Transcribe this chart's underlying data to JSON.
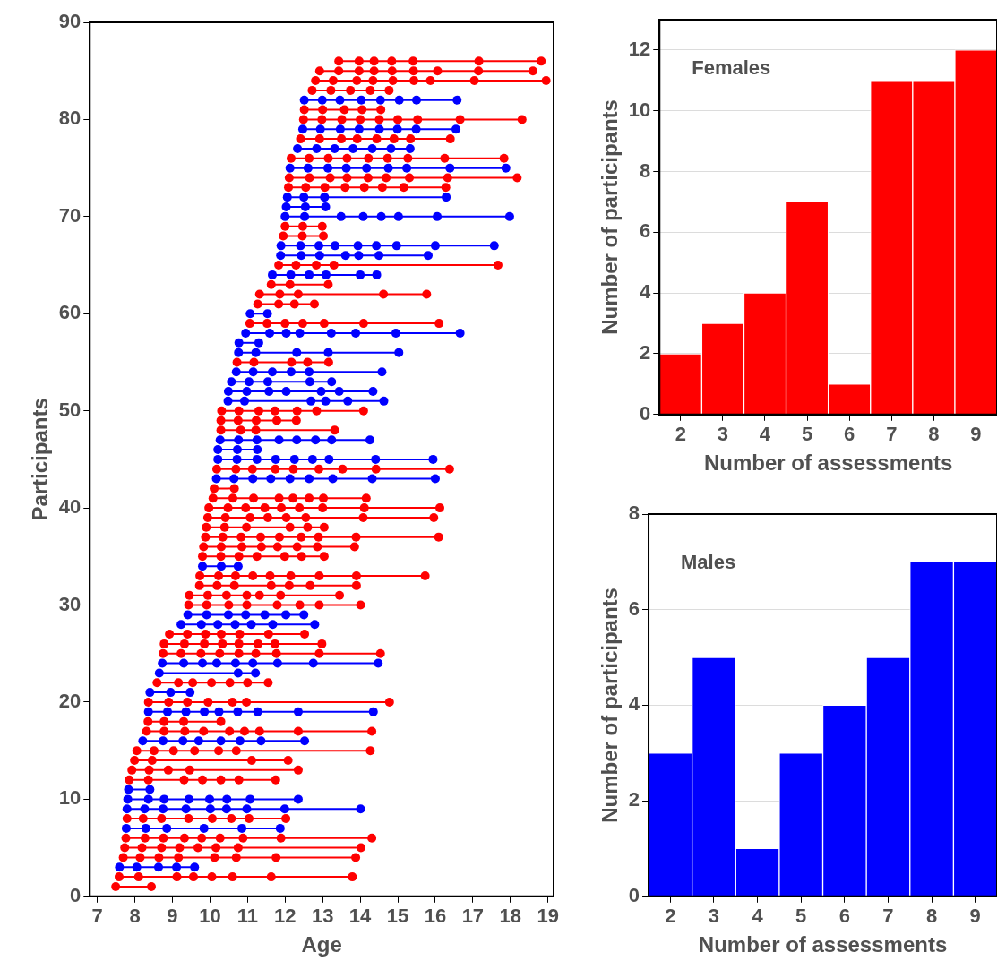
{
  "chart_data": [
    {
      "type": "line",
      "xlabel": "Age",
      "ylabel": "Participants",
      "xlim": [
        6.8,
        19.15
      ],
      "xticks": [
        7,
        8,
        9,
        10,
        11,
        12,
        13,
        14,
        15,
        16,
        17,
        18,
        19
      ],
      "ylim": [
        0,
        90
      ],
      "yticks": [
        0,
        10,
        20,
        30,
        40,
        50,
        60,
        70,
        80,
        90
      ],
      "marker": "circle",
      "legend": false,
      "series": [
        {
          "color": "#ff0000",
          "x": [
            7.49,
            8.44
          ],
          "values": [
            1,
            1
          ]
        },
        {
          "color": "#ff0000",
          "x": [
            7.58,
            8.1,
            9.12,
            9.56,
            10.05,
            10.6,
            11.63,
            13.79
          ],
          "values": [
            2,
            2,
            2,
            2,
            2,
            2,
            2,
            2
          ]
        },
        {
          "color": "#0000ff",
          "x": [
            7.59,
            8.05,
            8.63,
            9.11,
            9.59
          ],
          "values": [
            3,
            3,
            3,
            3,
            3
          ]
        },
        {
          "color": "#ff0000",
          "x": [
            7.69,
            8.14,
            8.64,
            9.16,
            10.12,
            10.7,
            11.76,
            13.88
          ],
          "values": [
            4,
            4,
            4,
            4,
            4,
            4,
            4,
            4
          ]
        },
        {
          "color": "#ff0000",
          "x": [
            7.73,
            8.19,
            8.71,
            9.19,
            9.68,
            10.16,
            10.75,
            14.02
          ],
          "values": [
            5,
            5,
            5,
            5,
            5,
            5,
            5,
            5
          ]
        },
        {
          "color": "#ff0000",
          "x": [
            7.76,
            8.27,
            8.76,
            9.32,
            9.78,
            10.27,
            10.88,
            11.89,
            14.31
          ],
          "values": [
            6,
            6,
            6,
            6,
            6,
            6,
            6,
            6,
            6
          ]
        },
        {
          "color": "#0000ff",
          "x": [
            7.77,
            8.29,
            8.85,
            9.84,
            10.85,
            11.87
          ],
          "values": [
            7,
            7,
            7,
            7,
            7,
            7
          ]
        },
        {
          "color": "#ff0000",
          "x": [
            7.79,
            8.22,
            8.71,
            9.43,
            10.06,
            10.57,
            11.04,
            12.02
          ],
          "values": [
            8,
            8,
            8,
            8,
            8,
            8,
            8,
            8
          ]
        },
        {
          "color": "#0000ff",
          "x": [
            7.79,
            8.26,
            8.75,
            9.36,
            10.01,
            10.44,
            10.98,
            11.99,
            14.01
          ],
          "values": [
            9,
            9,
            9,
            9,
            9,
            9,
            9,
            9,
            9
          ]
        },
        {
          "color": "#0000ff",
          "x": [
            7.81,
            8.36,
            8.78,
            9.44,
            9.99,
            10.45,
            11.07,
            12.35
          ],
          "values": [
            10,
            10,
            10,
            10,
            10,
            10,
            10,
            10
          ]
        },
        {
          "color": "#0000ff",
          "x": [
            7.83,
            8.4
          ],
          "values": [
            11,
            11
          ]
        },
        {
          "color": "#ff0000",
          "x": [
            7.85,
            8.36,
            9.31,
            9.8,
            10.29,
            10.77,
            11.75
          ],
          "values": [
            12,
            12,
            12,
            12,
            12,
            12,
            12
          ]
        },
        {
          "color": "#ff0000",
          "x": [
            7.92,
            8.38,
            8.89,
            9.46,
            12.35
          ],
          "values": [
            13,
            13,
            13,
            13,
            13
          ]
        },
        {
          "color": "#ff0000",
          "x": [
            7.99,
            8.46,
            11.11,
            12.08
          ],
          "values": [
            14,
            14,
            14,
            14
          ]
        },
        {
          "color": "#ff0000",
          "x": [
            8.05,
            8.51,
            9.03,
            9.59,
            10.23,
            10.7,
            14.27
          ],
          "values": [
            15,
            15,
            15,
            15,
            15,
            15,
            15
          ]
        },
        {
          "color": "#0000ff",
          "x": [
            8.21,
            8.75,
            9.28,
            9.7,
            10.29,
            10.8,
            11.36,
            12.52
          ],
          "values": [
            16,
            16,
            16,
            16,
            16,
            16,
            16,
            16
          ]
        },
        {
          "color": "#ff0000",
          "x": [
            8.31,
            8.78,
            9.33,
            9.83,
            10.52,
            10.92,
            11.32,
            12.35,
            14.31
          ],
          "values": [
            17,
            17,
            17,
            17,
            17,
            17,
            17,
            17,
            17
          ]
        },
        {
          "color": "#ff0000",
          "x": [
            8.35,
            8.78,
            9.3,
            10.29
          ],
          "values": [
            18,
            18,
            18,
            18
          ]
        },
        {
          "color": "#0000ff",
          "x": [
            8.36,
            8.87,
            9.36,
            9.85,
            10.24,
            10.74,
            11.27,
            12.35,
            14.35
          ],
          "values": [
            19,
            19,
            19,
            19,
            19,
            19,
            19,
            19,
            19
          ]
        },
        {
          "color": "#ff0000",
          "x": [
            8.36,
            8.9,
            9.4,
            9.95,
            10.6,
            10.97,
            14.78
          ],
          "values": [
            20,
            20,
            20,
            20,
            20,
            20,
            20
          ]
        },
        {
          "color": "#0000ff",
          "x": [
            8.4,
            8.95,
            9.47
          ],
          "values": [
            21,
            21,
            21
          ]
        },
        {
          "color": "#ff0000",
          "x": [
            8.59,
            9.16,
            9.54,
            10.04,
            10.53,
            11.0,
            11.55
          ],
          "values": [
            22,
            22,
            22,
            22,
            22,
            22,
            22
          ]
        },
        {
          "color": "#0000ff",
          "x": [
            8.65,
            10.75,
            11.21
          ],
          "values": [
            23,
            23,
            23
          ]
        },
        {
          "color": "#0000ff",
          "x": [
            8.73,
            9.3,
            9.8,
            10.18,
            10.68,
            11.14,
            11.8,
            12.75,
            14.48
          ],
          "values": [
            24,
            24,
            24,
            24,
            24,
            24,
            24,
            24,
            24
          ]
        },
        {
          "color": "#ff0000",
          "x": [
            8.75,
            9.23,
            9.76,
            10.26,
            10.77,
            11.22,
            11.77,
            12.91,
            14.54
          ],
          "values": [
            25,
            25,
            25,
            25,
            25,
            25,
            25,
            25,
            25
          ]
        },
        {
          "color": "#ff0000",
          "x": [
            8.78,
            9.32,
            9.85,
            10.33,
            10.77,
            11.28,
            11.73,
            12.98
          ],
          "values": [
            26,
            26,
            26,
            26,
            26,
            26,
            26,
            26
          ]
        },
        {
          "color": "#ff0000",
          "x": [
            8.92,
            9.4,
            9.88,
            10.3,
            10.79,
            11.56,
            12.52
          ],
          "values": [
            27,
            27,
            27,
            27,
            27,
            27,
            27
          ]
        },
        {
          "color": "#0000ff",
          "x": [
            9.23,
            9.77,
            10.21,
            10.67,
            11.1,
            11.67,
            12.79
          ],
          "values": [
            28,
            28,
            28,
            28,
            28,
            28,
            28
          ]
        },
        {
          "color": "#0000ff",
          "x": [
            9.41,
            9.91,
            10.49,
            10.95,
            11.46,
            12.02,
            12.5
          ],
          "values": [
            29,
            29,
            29,
            29,
            29,
            29,
            29
          ]
        },
        {
          "color": "#ff0000",
          "x": [
            9.43,
            9.91,
            10.5,
            10.98,
            11.79,
            12.39,
            12.91,
            14.01
          ],
          "values": [
            30,
            30,
            30,
            30,
            30,
            30,
            30,
            30
          ]
        },
        {
          "color": "#ff0000",
          "x": [
            9.45,
            9.94,
            10.44,
            10.98,
            11.32,
            11.88,
            13.45
          ],
          "values": [
            31,
            31,
            31,
            31,
            31,
            31,
            31
          ]
        },
        {
          "color": "#ff0000",
          "x": [
            9.72,
            10.19,
            10.65,
            11.63,
            12.11,
            12.67,
            13.9
          ],
          "values": [
            32,
            32,
            32,
            32,
            32,
            32,
            32
          ]
        },
        {
          "color": "#ff0000",
          "x": [
            9.73,
            10.23,
            10.68,
            11.14,
            11.6,
            12.15,
            12.91,
            13.9,
            15.73
          ],
          "values": [
            33,
            33,
            33,
            33,
            33,
            33,
            33,
            33,
            33
          ]
        },
        {
          "color": "#0000ff",
          "x": [
            9.8,
            10.3,
            10.75
          ],
          "values": [
            34,
            34,
            34
          ]
        },
        {
          "color": "#ff0000",
          "x": [
            9.8,
            10.29,
            10.77,
            11.25,
            11.99,
            12.44,
            13.04
          ],
          "values": [
            35,
            35,
            35,
            35,
            35,
            35,
            35
          ]
        },
        {
          "color": "#ff0000",
          "x": [
            9.83,
            10.3,
            10.85,
            11.37,
            11.8,
            12.32,
            12.86,
            13.85
          ],
          "values": [
            36,
            36,
            36,
            36,
            36,
            36,
            36,
            36
          ]
        },
        {
          "color": "#ff0000",
          "x": [
            9.88,
            10.34,
            10.83,
            11.35,
            11.85,
            12.43,
            12.89,
            13.89,
            16.09
          ],
          "values": [
            37,
            37,
            37,
            37,
            37,
            37,
            37,
            37,
            37
          ]
        },
        {
          "color": "#ff0000",
          "x": [
            9.9,
            10.39,
            10.97,
            12.13,
            12.6,
            13.04
          ],
          "values": [
            38,
            38,
            38,
            38,
            38,
            38
          ]
        },
        {
          "color": "#ff0000",
          "x": [
            9.94,
            10.41,
            11.07,
            11.54,
            12.03,
            12.55,
            14.08,
            15.96
          ],
          "values": [
            39,
            39,
            39,
            39,
            39,
            39,
            39,
            39
          ]
        },
        {
          "color": "#ff0000",
          "x": [
            9.97,
            10.48,
            10.95,
            11.46,
            11.9,
            12.38,
            13.0,
            14.11,
            16.12
          ],
          "values": [
            40,
            40,
            40,
            40,
            40,
            40,
            40,
            40,
            40
          ]
        },
        {
          "color": "#ff0000",
          "x": [
            10.08,
            10.61,
            11.16,
            11.84,
            12.21,
            12.64,
            13.02,
            14.16
          ],
          "values": [
            41,
            41,
            41,
            41,
            41,
            41,
            41,
            41
          ]
        },
        {
          "color": "#ff0000",
          "x": [
            10.11,
            10.65
          ],
          "values": [
            42,
            42
          ]
        },
        {
          "color": "#0000ff",
          "x": [
            10.17,
            10.64,
            11.14,
            11.62,
            12.13,
            12.64,
            13.27,
            14.32,
            16.0
          ],
          "values": [
            43,
            43,
            43,
            43,
            43,
            43,
            43,
            43,
            43
          ]
        },
        {
          "color": "#ff0000",
          "x": [
            10.18,
            10.69,
            11.13,
            11.74,
            12.22,
            12.9,
            13.53,
            14.42,
            16.38
          ],
          "values": [
            44,
            44,
            44,
            44,
            44,
            44,
            44,
            44,
            44
          ]
        },
        {
          "color": "#0000ff",
          "x": [
            10.21,
            10.72,
            11.25,
            11.75,
            12.25,
            12.73,
            13.17,
            14.41,
            15.94
          ],
          "values": [
            45,
            45,
            45,
            45,
            45,
            45,
            45,
            45,
            45
          ]
        },
        {
          "color": "#0000ff",
          "x": [
            10.21,
            10.73,
            11.26
          ],
          "values": [
            46,
            46,
            46
          ]
        },
        {
          "color": "#0000ff",
          "x": [
            10.27,
            10.76,
            11.25,
            11.84,
            12.31,
            12.81,
            13.24,
            14.26
          ],
          "values": [
            47,
            47,
            47,
            47,
            47,
            47,
            47,
            47
          ]
        },
        {
          "color": "#ff0000",
          "x": [
            10.29,
            10.82,
            11.22,
            13.32
          ],
          "values": [
            48,
            48,
            48,
            48
          ]
        },
        {
          "color": "#ff0000",
          "x": [
            10.29,
            10.75,
            11.23,
            11.78,
            12.3
          ],
          "values": [
            49,
            49,
            49,
            49,
            49
          ]
        },
        {
          "color": "#ff0000",
          "x": [
            10.31,
            10.77,
            11.3,
            11.73,
            12.32,
            12.84,
            14.09
          ],
          "values": [
            50,
            50,
            50,
            50,
            50,
            50,
            50
          ]
        },
        {
          "color": "#0000ff",
          "x": [
            10.48,
            10.92,
            12.69,
            13.08,
            13.67,
            14.63
          ],
          "values": [
            51,
            51,
            51,
            51,
            51,
            51
          ]
        },
        {
          "color": "#0000ff",
          "x": [
            10.49,
            10.98,
            11.57,
            12.03,
            12.96,
            13.44,
            14.34
          ],
          "values": [
            52,
            52,
            52,
            52,
            52,
            52,
            52
          ]
        },
        {
          "color": "#0000ff",
          "x": [
            10.57,
            11.04,
            11.54,
            12.66,
            13.24
          ],
          "values": [
            53,
            53,
            53,
            53,
            53
          ]
        },
        {
          "color": "#0000ff",
          "x": [
            10.7,
            11.15,
            11.66,
            12.16,
            12.64,
            14.58
          ],
          "values": [
            54,
            54,
            54,
            54,
            54,
            54
          ]
        },
        {
          "color": "#ff0000",
          "x": [
            10.72,
            11.17,
            12.17,
            12.6,
            13.16
          ],
          "values": [
            55,
            55,
            55,
            55,
            55
          ]
        },
        {
          "color": "#0000ff",
          "x": [
            10.76,
            11.22,
            12.31,
            13.15,
            15.03
          ],
          "values": [
            56,
            56,
            56,
            56,
            56
          ]
        },
        {
          "color": "#0000ff",
          "x": [
            10.77,
            11.3
          ],
          "values": [
            57,
            57
          ]
        },
        {
          "color": "#0000ff",
          "x": [
            10.95,
            11.59,
            12.03,
            12.39,
            13.23,
            13.88,
            14.95,
            16.66
          ],
          "values": [
            58,
            58,
            58,
            58,
            58,
            58,
            58,
            58
          ]
        },
        {
          "color": "#ff0000",
          "x": [
            11.06,
            11.52,
            12.0,
            12.47,
            13.04,
            14.09,
            16.1
          ],
          "values": [
            59,
            59,
            59,
            59,
            59,
            59,
            59
          ]
        },
        {
          "color": "#0000ff",
          "x": [
            11.07,
            11.53
          ],
          "values": [
            60,
            60
          ]
        },
        {
          "color": "#ff0000",
          "x": [
            11.27,
            11.83,
            12.25,
            12.78
          ],
          "values": [
            61,
            61,
            61,
            61
          ]
        },
        {
          "color": "#ff0000",
          "x": [
            11.32,
            11.86,
            12.35,
            14.62,
            15.77
          ],
          "values": [
            62,
            62,
            62,
            62,
            62
          ]
        },
        {
          "color": "#ff0000",
          "x": [
            11.63,
            12.13,
            13.15
          ],
          "values": [
            63,
            63,
            63
          ]
        },
        {
          "color": "#0000ff",
          "x": [
            11.66,
            12.15,
            12.64,
            13.09,
            14.0,
            14.44
          ],
          "values": [
            64,
            64,
            64,
            64,
            64,
            64
          ]
        },
        {
          "color": "#ff0000",
          "x": [
            11.83,
            12.29,
            12.83,
            13.3,
            17.67
          ],
          "values": [
            65,
            65,
            65,
            65,
            65
          ]
        },
        {
          "color": "#0000ff",
          "x": [
            11.88,
            12.43,
            12.92,
            13.61,
            13.96,
            14.5,
            15.81
          ],
          "values": [
            66,
            66,
            66,
            66,
            66,
            66,
            66
          ]
        },
        {
          "color": "#0000ff",
          "x": [
            11.89,
            12.41,
            12.9,
            13.33,
            13.94,
            14.43,
            14.97,
            16.0,
            17.57
          ],
          "values": [
            67,
            67,
            67,
            67,
            67,
            67,
            67,
            67,
            67
          ]
        },
        {
          "color": "#ff0000",
          "x": [
            11.95,
            12.46,
            13.02
          ],
          "values": [
            68,
            68,
            68
          ]
        },
        {
          "color": "#ff0000",
          "x": [
            12.0,
            12.47,
            12.99
          ],
          "values": [
            69,
            69,
            69
          ]
        },
        {
          "color": "#0000ff",
          "x": [
            12.0,
            12.52,
            13.49,
            14.08,
            14.56,
            15.02,
            16.05,
            17.98
          ],
          "values": [
            70,
            70,
            70,
            70,
            70,
            70,
            70,
            70
          ]
        },
        {
          "color": "#0000ff",
          "x": [
            12.03,
            12.54,
            13.08
          ],
          "values": [
            71,
            71,
            71
          ]
        },
        {
          "color": "#0000ff",
          "x": [
            12.06,
            12.5,
            13.05,
            16.29
          ],
          "values": [
            72,
            72,
            72,
            72
          ]
        },
        {
          "color": "#ff0000",
          "x": [
            12.09,
            12.55,
            13.06,
            13.6,
            14.11,
            14.59,
            15.16,
            16.28
          ],
          "values": [
            73,
            73,
            73,
            73,
            73,
            73,
            73,
            73
          ]
        },
        {
          "color": "#ff0000",
          "x": [
            12.11,
            12.65,
            13.2,
            13.65,
            14.21,
            14.69,
            15.31,
            16.33,
            18.18
          ],
          "values": [
            74,
            74,
            74,
            74,
            74,
            74,
            74,
            74,
            74
          ]
        },
        {
          "color": "#0000ff",
          "x": [
            12.13,
            12.61,
            13.14,
            13.63,
            14.17,
            14.75,
            15.24,
            16.39,
            17.88
          ],
          "values": [
            75,
            75,
            75,
            75,
            75,
            75,
            75,
            75,
            75
          ]
        },
        {
          "color": "#ff0000",
          "x": [
            12.16,
            12.64,
            13.15,
            13.65,
            14.22,
            14.73,
            15.27,
            16.25,
            17.83
          ],
          "values": [
            76,
            76,
            76,
            76,
            76,
            76,
            76,
            76,
            76
          ]
        },
        {
          "color": "#0000ff",
          "x": [
            12.33,
            12.84,
            13.32,
            13.81,
            14.32,
            14.82,
            15.33
          ],
          "values": [
            77,
            77,
            77,
            77,
            77,
            77,
            77
          ]
        },
        {
          "color": "#ff0000",
          "x": [
            12.41,
            12.92,
            13.5,
            13.92,
            14.44,
            14.9,
            15.34,
            16.4
          ],
          "values": [
            78,
            78,
            78,
            78,
            78,
            78,
            78,
            78
          ]
        },
        {
          "color": "#0000ff",
          "x": [
            12.47,
            12.94,
            13.47,
            13.97,
            14.51,
            14.99,
            15.49,
            16.55
          ],
          "values": [
            79,
            79,
            79,
            79,
            79,
            79,
            79,
            79
          ]
        },
        {
          "color": "#ff0000",
          "x": [
            12.49,
            12.98,
            13.51,
            14.0,
            14.51,
            15.0,
            15.53,
            16.66,
            18.31
          ],
          "values": [
            80,
            80,
            80,
            80,
            80,
            80,
            80,
            80,
            80
          ]
        },
        {
          "color": "#ff0000",
          "x": [
            12.51,
            13.0,
            13.58,
            14.05,
            14.55
          ],
          "values": [
            81,
            81,
            81,
            81,
            81
          ]
        },
        {
          "color": "#0000ff",
          "x": [
            12.51,
            12.99,
            13.46,
            14.03,
            14.54,
            15.04,
            15.5,
            16.58
          ],
          "values": [
            82,
            82,
            82,
            82,
            82,
            82,
            82,
            82
          ]
        },
        {
          "color": "#ff0000",
          "x": [
            12.72,
            13.22,
            13.74,
            14.27,
            14.77
          ],
          "values": [
            83,
            83,
            83,
            83,
            83
          ]
        },
        {
          "color": "#ff0000",
          "x": [
            12.81,
            13.28,
            13.91,
            14.34,
            14.87,
            15.43,
            15.87,
            17.04,
            18.95
          ],
          "values": [
            84,
            84,
            84,
            84,
            84,
            84,
            84,
            84,
            84
          ]
        },
        {
          "color": "#ff0000",
          "x": [
            12.92,
            13.43,
            13.97,
            14.37,
            14.85,
            15.42,
            16.06,
            17.15,
            18.6
          ],
          "values": [
            85,
            85,
            85,
            85,
            85,
            85,
            85,
            85,
            85
          ]
        },
        {
          "color": "#ff0000",
          "x": [
            13.43,
            13.97,
            14.37,
            14.84,
            15.41,
            17.16,
            18.82
          ],
          "values": [
            86,
            86,
            86,
            86,
            86,
            86,
            86
          ]
        }
      ]
    },
    {
      "type": "bar",
      "xlabel": "Number of assessments",
      "ylabel": "Number of participants",
      "annotations": [
        "Females"
      ],
      "categories": [
        "2",
        "3",
        "4",
        "5",
        "6",
        "7",
        "8",
        "9"
      ],
      "values": [
        2,
        3,
        4,
        7,
        1,
        11,
        11,
        12
      ],
      "color": "#ff0000",
      "ylim": [
        0,
        13
      ],
      "yticks": [
        0,
        2,
        4,
        6,
        8,
        10,
        12
      ],
      "grid": "y",
      "legend": false
    },
    {
      "type": "bar",
      "xlabel": "Number of assessments",
      "ylabel": "Number of participants",
      "annotations": [
        "Males"
      ],
      "categories": [
        "2",
        "3",
        "4",
        "5",
        "6",
        "7",
        "8",
        "9"
      ],
      "values": [
        3,
        5,
        1,
        3,
        4,
        5,
        7,
        7
      ],
      "color": "#0000ff",
      "ylim": [
        0,
        8
      ],
      "yticks": [
        0,
        2,
        4,
        6,
        8
      ],
      "grid": "y",
      "legend": false
    }
  ]
}
